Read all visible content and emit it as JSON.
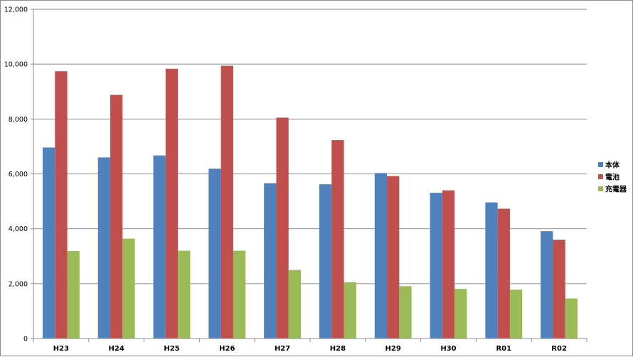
{
  "chart_data": {
    "type": "bar",
    "categories": [
      "H23",
      "H24",
      "H25",
      "H26",
      "H27",
      "H28",
      "H29",
      "H30",
      "R01",
      "R02"
    ],
    "series": [
      {
        "name": "本体",
        "color": "#4f81bd",
        "values": [
          6960,
          6600,
          6670,
          6190,
          5660,
          5620,
          6030,
          5310,
          4960,
          3910
        ]
      },
      {
        "name": "電池",
        "color": "#c0504d",
        "values": [
          9740,
          8880,
          9830,
          9940,
          8050,
          7230,
          5920,
          5400,
          4730,
          3600
        ]
      },
      {
        "name": "充電器",
        "color": "#9bbb59",
        "values": [
          3190,
          3640,
          3200,
          3200,
          2500,
          2050,
          1910,
          1810,
          1780,
          1460
        ]
      }
    ],
    "ylim": [
      0,
      12000
    ],
    "yticks": [
      "0",
      "2,000",
      "4,000",
      "6,000",
      "8,000",
      "10,000",
      "12,000"
    ],
    "grid": true,
    "legend_position": "right"
  }
}
